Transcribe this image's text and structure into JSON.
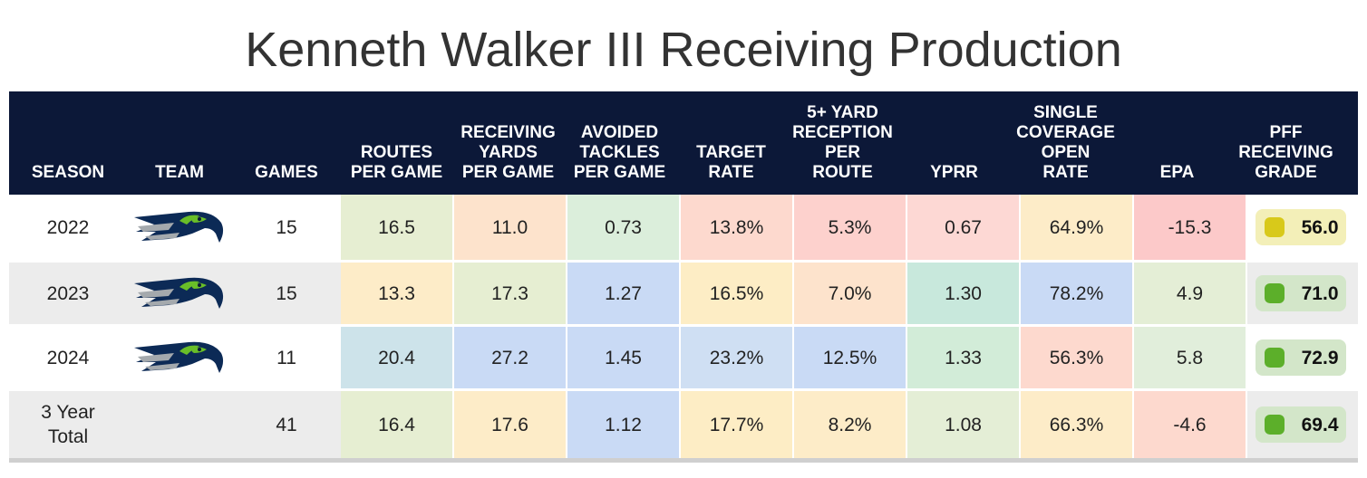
{
  "title": "Kenneth Walker III Receiving Production",
  "chart_data": {
    "type": "table",
    "columns": [
      "SEASON",
      "TEAM",
      "GAMES",
      "ROUTES\nPER GAME",
      "RECEIVING\nYARDS\nPER GAME",
      "AVOIDED\nTACKLES\nPER GAME",
      "TARGET\nRATE",
      "5+ YARD\nRECEPTION\nPER\nROUTE",
      "YPRR",
      "SINGLE\nCOVERAGE\nOPEN\nRATE",
      "EPA",
      "PFF\nRECEIVING\nGRADE"
    ],
    "rows": [
      {
        "season": "2022",
        "team_logo": "seahawks-logo",
        "games": "15",
        "stats": [
          "16.5",
          "11.0",
          "0.73",
          "13.8%",
          "5.3%",
          "0.67",
          "64.9%",
          "-15.3"
        ],
        "stat_colors": [
          "#e6eed2",
          "#fde3cc",
          "#dbeedb",
          "#fdd9ce",
          "#fdd1cd",
          "#fdd8d4",
          "#fdecc8",
          "#fcc9c9"
        ],
        "grade": "56.0",
        "grade_color": "#d8c91a",
        "grade_bg": "#f3efb8"
      },
      {
        "season": "2023",
        "team_logo": "seahawks-logo",
        "games": "15",
        "stats": [
          "13.3",
          "17.3",
          "1.27",
          "16.5%",
          "7.0%",
          "1.30",
          "78.2%",
          "4.9"
        ],
        "stat_colors": [
          "#fdecc8",
          "#e6eed2",
          "#c9daf5",
          "#fdedc5",
          "#fde3cc",
          "#c8e8dc",
          "#c9daf5",
          "#e4eed6"
        ],
        "grade": "71.0",
        "grade_color": "#5caf2a",
        "grade_bg": "#d3e6c9"
      },
      {
        "season": "2024",
        "team_logo": "seahawks-logo",
        "games": "11",
        "stats": [
          "20.4",
          "27.2",
          "1.45",
          "23.2%",
          "12.5%",
          "1.33",
          "56.3%",
          "5.8"
        ],
        "stat_colors": [
          "#cde3ea",
          "#c9daf5",
          "#c9daf5",
          "#cfdff3",
          "#c9daf5",
          "#d2ecd8",
          "#fdd9ce",
          "#e1eedb"
        ],
        "grade": "72.9",
        "grade_color": "#5caf2a",
        "grade_bg": "#d3e6c9"
      },
      {
        "season": "3 Year\nTotal",
        "team_logo": "",
        "games": "41",
        "stats": [
          "16.4",
          "17.6",
          "1.12",
          "17.7%",
          "8.2%",
          "1.08",
          "66.3%",
          "-4.6"
        ],
        "stat_colors": [
          "#e6eed2",
          "#fdecc8",
          "#c9daf5",
          "#fdedc5",
          "#fdecc8",
          "#e4eed6",
          "#fdecc8",
          "#fdd9ce"
        ],
        "grade": "69.4",
        "grade_color": "#5caf2a",
        "grade_bg": "#d3e6c9"
      }
    ]
  },
  "colors": {
    "header_bg": "#0c1838",
    "logo_navy": "#0c2a56",
    "logo_grey": "#a4a9ad",
    "logo_green": "#69be28"
  }
}
